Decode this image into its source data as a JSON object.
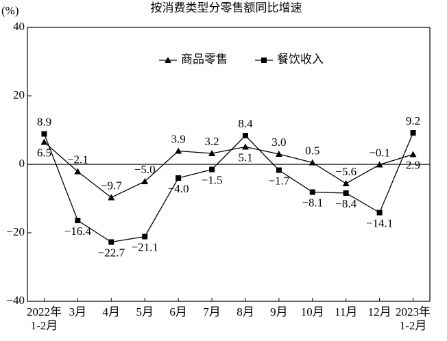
{
  "chart_data": {
    "type": "line",
    "title": "按消费类型分零售额同比增速",
    "y_unit": "(%)",
    "categories": [
      "2022年\n1-2月",
      "3月",
      "4月",
      "5月",
      "6月",
      "7月",
      "8月",
      "9月",
      "10月",
      "11月",
      "12月",
      "2023年\n1-2月"
    ],
    "series": [
      {
        "name": "商品零售",
        "color": "#000000",
        "marker": "triangle",
        "values": [
          6.5,
          -2.1,
          -9.7,
          -5.0,
          3.9,
          3.2,
          5.1,
          3.0,
          0.5,
          -5.6,
          -0.1,
          2.9
        ],
        "value_labels": [
          "6.5",
          "−2.1",
          "−9.7",
          "−5.0",
          "3.9",
          "3.2",
          "5.1",
          "3.0",
          "0.5",
          "−5.6",
          "−0.1",
          "2.9"
        ]
      },
      {
        "name": "餐饮收入",
        "color": "#000000",
        "marker": "square",
        "values": [
          8.9,
          -16.4,
          -22.7,
          -21.1,
          -4.0,
          -1.5,
          8.4,
          -1.7,
          -8.1,
          -8.4,
          -14.1,
          9.2
        ],
        "value_labels": [
          "8.9",
          "−16.4",
          "−22.7",
          "−21.1",
          "−4.0",
          "−1.5",
          "8.4",
          "−1.7",
          "−8.1",
          "−8.4",
          "−14.1",
          "9.2"
        ]
      }
    ],
    "ylim": [
      -40,
      40
    ],
    "yticks": [
      {
        "value": -40,
        "label": "−40"
      },
      {
        "value": -20,
        "label": "−20"
      },
      0,
      20,
      40
    ],
    "zero_line": true,
    "legend": "top"
  }
}
